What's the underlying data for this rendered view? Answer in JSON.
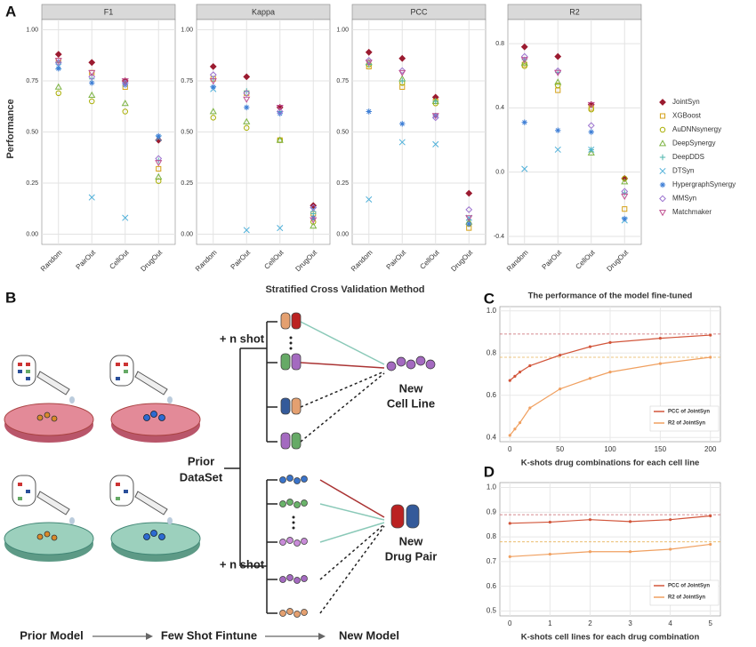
{
  "chart_data": [
    {
      "type": "dot",
      "panel": "A",
      "ylabel": "Performance",
      "xlabel": "Stratified Cross Validation Method",
      "categories": [
        "Random",
        "PairOut",
        "CellOut",
        "DrugOut"
      ],
      "grid": true,
      "legend": "right",
      "series": [
        {
          "name": "JointSyn",
          "color": "#9b1b30",
          "shape": "diamond-filled"
        },
        {
          "name": "XGBoost",
          "color": "#d4a017",
          "shape": "square"
        },
        {
          "name": "AuDNNsynergy",
          "color": "#a8ad00",
          "shape": "circle"
        },
        {
          "name": "DeepSynergy",
          "color": "#7cb342",
          "shape": "triangle"
        },
        {
          "name": "DeepDDS",
          "color": "#4db6ac",
          "shape": "plus"
        },
        {
          "name": "DTSyn",
          "color": "#4fb0d9",
          "shape": "x"
        },
        {
          "name": "HypergraphSynergy",
          "color": "#3f7fd6",
          "shape": "asterisk"
        },
        {
          "name": "MMSyn",
          "color": "#9b72cf",
          "shape": "diamond"
        },
        {
          "name": "Matchmaker",
          "color": "#c05090",
          "shape": "triangle-down"
        }
      ],
      "facets": [
        {
          "title": "F1",
          "ylim": [
            -0.05,
            1.05
          ],
          "yticks": [
            {
              "value": 0,
              "label": "0.00"
            },
            0.25,
            {
              "value": 0.5,
              "label": "0.50"
            },
            0.75,
            {
              "value": 1,
              "label": "1.00"
            }
          ],
          "values": [
            [
              0.88,
              0.84,
              0.75,
              0.46
            ],
            [
              0.85,
              0.79,
              0.72,
              0.32
            ],
            [
              0.69,
              0.65,
              0.6,
              0.26
            ],
            [
              0.72,
              0.68,
              0.64,
              0.28
            ],
            [
              0.84,
              0.76,
              0.74,
              0.36
            ],
            [
              0.82,
              0.18,
              0.08,
              0.47
            ],
            [
              0.81,
              0.74,
              0.73,
              0.48
            ],
            [
              0.84,
              0.77,
              0.74,
              0.37
            ],
            [
              0.85,
              0.79,
              0.75,
              0.35
            ]
          ]
        },
        {
          "title": "Kappa",
          "ylim": [
            -0.05,
            1.05
          ],
          "yticks": [
            {
              "value": 0,
              "label": "0.00"
            },
            0.25,
            {
              "value": 0.5,
              "label": "0.50"
            },
            0.75,
            {
              "value": 1,
              "label": "1.00"
            }
          ],
          "values": [
            [
              0.82,
              0.77,
              0.62,
              0.14
            ],
            [
              0.76,
              0.69,
              0.46,
              0.1
            ],
            [
              0.57,
              0.52,
              0.46,
              0.06
            ],
            [
              0.6,
              0.55,
              0.46,
              0.04
            ],
            [
              0.76,
              0.7,
              0.6,
              0.1
            ],
            [
              0.71,
              0.02,
              0.03,
              0.12
            ],
            [
              0.72,
              0.62,
              0.59,
              0.08
            ],
            [
              0.78,
              0.69,
              0.6,
              0.13
            ],
            [
              0.75,
              0.66,
              0.62,
              0.07
            ]
          ]
        },
        {
          "title": "PCC",
          "ylim": [
            -0.05,
            1.05
          ],
          "yticks": [
            {
              "value": 0,
              "label": "0.00"
            },
            0.25,
            {
              "value": 0.5,
              "label": "0.50"
            },
            0.75,
            {
              "value": 1,
              "label": "1.00"
            }
          ],
          "values": [
            [
              0.89,
              0.86,
              0.67,
              0.2
            ],
            [
              0.82,
              0.72,
              0.65,
              0.03
            ],
            [
              0.83,
              0.74,
              0.64,
              0.05
            ],
            [
              0.84,
              0.76,
              0.65,
              0.06
            ],
            [
              0.83,
              0.75,
              0.65,
              0.07
            ],
            [
              0.17,
              0.45,
              0.44,
              0.08
            ],
            [
              0.6,
              0.54,
              0.58,
              0.05
            ],
            [
              0.85,
              0.8,
              0.57,
              0.12
            ],
            [
              0.84,
              0.79,
              0.58,
              0.08
            ]
          ]
        },
        {
          "title": "R2",
          "ylim": [
            -0.45,
            0.95
          ],
          "yticks": [
            -0.4,
            {
              "value": 0,
              "label": "0.0"
            },
            0.4,
            0.8
          ],
          "values": [
            [
              0.78,
              0.72,
              0.42,
              -0.04
            ],
            [
              0.67,
              0.51,
              0.4,
              -0.23
            ],
            [
              0.66,
              0.54,
              0.39,
              -0.04
            ],
            [
              0.68,
              0.56,
              0.12,
              -0.06
            ],
            [
              0.7,
              0.62,
              0.14,
              -0.13
            ],
            [
              0.02,
              0.14,
              0.14,
              -0.3
            ],
            [
              0.31,
              0.26,
              0.25,
              -0.29
            ],
            [
              0.72,
              0.63,
              0.29,
              -0.12
            ],
            [
              0.7,
              0.62,
              0.42,
              -0.15
            ]
          ]
        }
      ]
    },
    {
      "type": "line",
      "panel": "C",
      "title": "The performance of the model fine-tuned",
      "xlabel": "K-shots drug combinations for each cell line",
      "x": [
        0,
        5,
        10,
        20,
        50,
        80,
        100,
        150,
        200
      ],
      "xlim": [
        -10,
        210
      ],
      "xticks": [
        0,
        50,
        100,
        150,
        200
      ],
      "ylim": [
        0.38,
        1.02
      ],
      "yticks": [
        0.4,
        0.6,
        0.8,
        {
          "value": 1,
          "label": "1.0"
        }
      ],
      "grid": true,
      "legend": "bottom-right",
      "hlines": [
        {
          "value": 0.89,
          "color": "#c8666b"
        },
        {
          "value": 0.78,
          "color": "#e8b35a"
        }
      ],
      "series": [
        {
          "name": "PCC of JointSyn",
          "color": "#d2553a",
          "values": [
            0.67,
            0.69,
            0.71,
            0.74,
            0.79,
            0.83,
            0.85,
            0.87,
            0.885
          ]
        },
        {
          "name": "R2 of JointSyn",
          "color": "#f0a060",
          "values": [
            0.41,
            0.44,
            0.47,
            0.54,
            0.63,
            0.68,
            0.71,
            0.75,
            0.78
          ]
        }
      ]
    },
    {
      "type": "line",
      "panel": "D",
      "xlabel": "K-shots cell lines for each drug combination",
      "x": [
        0,
        1,
        2,
        3,
        4,
        5
      ],
      "xlim": [
        -0.25,
        5.25
      ],
      "xticks": [
        0,
        1,
        2,
        3,
        4,
        5
      ],
      "ylim": [
        0.48,
        1.02
      ],
      "yticks": [
        0.5,
        0.6,
        0.7,
        0.8,
        0.9,
        {
          "value": 1,
          "label": "1.0"
        }
      ],
      "grid": true,
      "legend": "bottom-right",
      "hlines": [
        {
          "value": 0.89,
          "color": "#c8666b"
        },
        {
          "value": 0.78,
          "color": "#e8b35a"
        }
      ],
      "series": [
        {
          "name": "PCC of JointSyn",
          "color": "#d2553a",
          "values": [
            0.855,
            0.86,
            0.87,
            0.862,
            0.87,
            0.885
          ]
        },
        {
          "name": "R2 of JointSyn",
          "color": "#f0a060",
          "values": [
            0.72,
            0.73,
            0.74,
            0.74,
            0.75,
            0.77
          ]
        }
      ]
    }
  ],
  "diagram": {
    "panel": "B",
    "prior_dataset": [
      "Prior",
      "DataSet"
    ],
    "shot_labels": [
      "+ n shot",
      "+ n shot"
    ],
    "new_cell_line": [
      "New",
      "Cell Line"
    ],
    "new_drug_pair": [
      "New",
      "Drug Pair"
    ],
    "pipeline": [
      "Prior Model",
      "Few Shot Fintune",
      "New Model"
    ]
  }
}
